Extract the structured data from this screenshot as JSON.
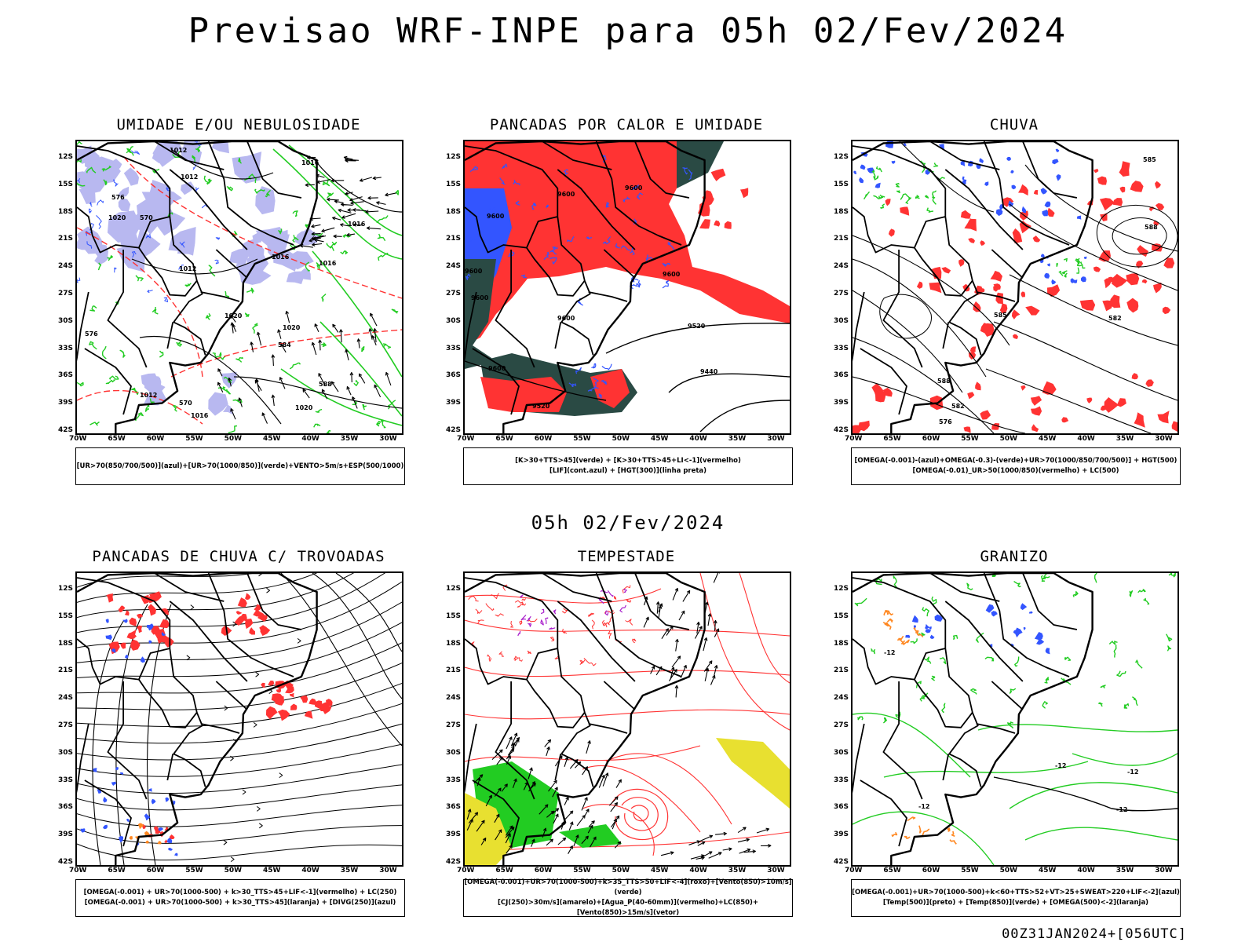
{
  "title": "Previsao WRF-INPE  para 05h 02/Fev/2024",
  "mid_time": "05h 02/Fev/2024",
  "footer": "00Z31JAN2024+[056UTC]",
  "lat_labels": [
    "12S",
    "15S",
    "18S",
    "21S",
    "24S",
    "27S",
    "30S",
    "33S",
    "36S",
    "39S",
    "42S"
  ],
  "lon_labels": [
    "70W",
    "65W",
    "60W",
    "55W",
    "50W",
    "45W",
    "40W",
    "35W",
    "30W"
  ],
  "colors": {
    "blue": "#3355ff",
    "green": "#22cc22",
    "red": "#ff3333",
    "darkgreen": "#2a4a44",
    "purple": "#aa22cc",
    "yellow": "#e8e030",
    "orange": "#ff8822",
    "lavender": "#b8b8f0"
  },
  "panels": [
    {
      "id": "umidade",
      "title": "UMIDADE E/OU NEBULOSIDADE",
      "legend": [
        "[UR>70(850/700/500)](azul)+[UR>70(1000/850)](verde)+VENTO>5m/s+ESP(500/1000)"
      ],
      "contour_labels": [
        "1012",
        "1016",
        "1020",
        "576",
        "570",
        "584",
        "588"
      ]
    },
    {
      "id": "pancadas-calor",
      "title": "PANCADAS POR CALOR E UMIDADE",
      "legend": [
        "[K>30+TTS>45](verde)  +  [K>30+TTS>45+LI<-1](vermelho)",
        "[LIF](cont.azul)  +  [HGT(300)](linha preta)"
      ],
      "contour_labels": [
        "9600",
        "9520",
        "9440"
      ]
    },
    {
      "id": "chuva",
      "title": "CHUVA",
      "legend": [
        "[OMEGA(-0.001)-(azul)+OMEGA(-0.3)-(verde)+UR>70(1000/850/700/500)]  +  HGT(500)",
        "[OMEGA(-0.01)_UR>50(1000/850)(vermelho)  +  LC(500)"
      ],
      "contour_labels": [
        "585",
        "588",
        "582"
      ]
    },
    {
      "id": "trovoadas",
      "title": "PANCADAS DE CHUVA C/ TROVOADAS",
      "legend": [
        "[OMEGA(-0.001)  +  UR>70(1000-500)  +  k>30_TTS>45+LIF<-1](vermelho)  +  LC(250)",
        "[OMEGA(-0.001)  +  UR>70(1000-500)  +  k>30_TTS>45](laranja)  +  [DIVG(250)](azul)"
      ],
      "contour_labels": []
    },
    {
      "id": "tempestade",
      "title": "TEMPESTADE",
      "legend": [
        "[OMEGA(-0.001)+UR>70(1000-500)+k>35_TTS>50+LIF<-4](roxo)+[Vento(850)>10m/s](verde)",
        "[CJ(250)>30m/s](amarelo)+[Agua_P(40-60mm)](vermelho)+LC(850)+[Vento(850)>15m/s](vetor)"
      ],
      "contour_labels": []
    },
    {
      "id": "granizo",
      "title": "GRANIZO",
      "legend": [
        "[OMEGA(-0.001)+UR>70(1000-500)+k<60+TTS>52+VT>25+SWEAT>220+LIF<-2](azul)",
        "[Temp(500)](preto)  +  [Temp(850)](verde)  +  [OMEGA(500)<-2](laranja)"
      ],
      "contour_labels": [
        "-12"
      ]
    }
  ]
}
